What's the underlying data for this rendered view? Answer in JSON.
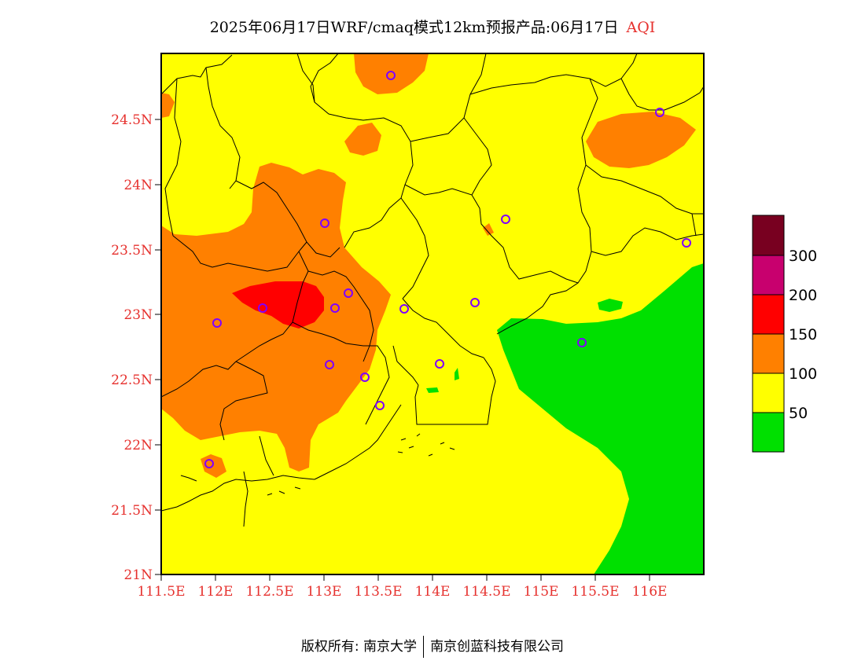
{
  "title": {
    "text": "2025年06月17日WRF/cmaq模式12km预报产品:06月17日",
    "product": "AQI"
  },
  "axes": {
    "x_ticks": [
      "111.5E",
      "112E",
      "112.5E",
      "113E",
      "113.5E",
      "114E",
      "114.5E",
      "115E",
      "115.5E",
      "116E"
    ],
    "y_ticks": [
      "24.5N",
      "24N",
      "23.5N",
      "23N",
      "22.5N",
      "22N",
      "21.5N",
      "21N"
    ]
  },
  "legend": {
    "labels": [
      "300",
      "200",
      "150",
      "100",
      "50"
    ],
    "colors": [
      "#780020",
      "#c8006e",
      "#ff0000",
      "#ff8000",
      "#ffff00",
      "#00e000"
    ]
  },
  "map_colors": {
    "good": "#00e000",
    "moderate": "#ffff00",
    "sensitive": "#ff8000",
    "unhealthy": "#ff0000",
    "station_marker": "#8000ff"
  },
  "footer": {
    "left": "版权所有: 南京大学",
    "right": "南京创蓝科技有限公司"
  }
}
